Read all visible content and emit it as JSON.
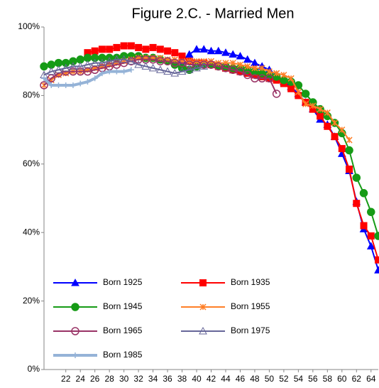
{
  "chart_data": {
    "type": "line",
    "title": "Figure 2.C. - Married Men",
    "x": [
      19,
      20,
      21,
      22,
      23,
      24,
      25,
      26,
      27,
      28,
      29,
      30,
      31,
      32,
      33,
      34,
      35,
      36,
      37,
      38,
      39,
      40,
      41,
      42,
      43,
      44,
      45,
      46,
      47,
      48,
      49,
      50,
      51,
      52,
      53,
      54,
      55,
      56,
      57,
      58,
      59,
      60,
      61,
      62,
      63,
      64,
      65
    ],
    "xlim": [
      19,
      65
    ],
    "xticks": [
      22,
      24,
      26,
      28,
      30,
      32,
      34,
      36,
      38,
      40,
      42,
      44,
      46,
      48,
      50,
      52,
      54,
      56,
      58,
      60,
      62,
      64
    ],
    "ylim": [
      0,
      100
    ],
    "yticks": [
      {
        "value": 0,
        "label": "0%"
      },
      {
        "value": 20,
        "label": "20%"
      },
      {
        "value": 40,
        "label": "40%"
      },
      {
        "value": 60,
        "label": "60%"
      },
      {
        "value": 80,
        "label": "80%"
      },
      {
        "value": 100,
        "label": "100%"
      }
    ],
    "series": [
      {
        "name": "Born 1925",
        "color": "#0000ff",
        "marker": "triangle",
        "values": [
          null,
          null,
          null,
          null,
          null,
          null,
          null,
          null,
          null,
          null,
          null,
          null,
          null,
          null,
          null,
          null,
          null,
          null,
          null,
          90,
          92,
          93.5,
          93.5,
          93,
          93,
          92.5,
          92,
          91.5,
          90.5,
          89.5,
          88.5,
          87.5,
          86,
          84,
          82.5,
          80.5,
          78,
          76,
          73,
          71.5,
          68,
          63,
          58,
          49,
          41,
          36,
          29
        ]
      },
      {
        "name": "Born 1935",
        "color": "#ff0000",
        "marker": "square",
        "values": [
          null,
          null,
          null,
          null,
          null,
          null,
          92.5,
          93,
          93.5,
          93.5,
          94,
          94.5,
          94.5,
          94,
          93.5,
          94,
          93.5,
          93,
          92.5,
          91.5,
          90,
          89.5,
          89.5,
          89,
          88.5,
          88,
          87.5,
          87,
          86.5,
          86,
          85.5,
          85,
          84.5,
          83.5,
          82,
          80,
          78,
          76,
          74,
          71,
          68,
          64.5,
          58.5,
          48.5,
          42,
          39,
          32
        ]
      },
      {
        "name": "Born 1945",
        "color": "#169b16",
        "marker": "circle",
        "values": [
          88.5,
          89,
          89.5,
          89.5,
          90,
          90.5,
          91,
          91,
          91,
          91,
          91,
          91.5,
          91.5,
          91.5,
          91,
          91,
          90.5,
          90,
          89,
          88,
          87.5,
          88.5,
          89,
          89,
          88.5,
          88.5,
          88,
          88,
          87.5,
          87,
          86.5,
          86,
          85.5,
          84.5,
          84,
          83,
          80.5,
          78,
          76,
          74,
          72,
          69,
          64,
          56,
          51.5,
          46,
          39
        ]
      },
      {
        "name": "Born 1955",
        "color": "#ff7f27",
        "marker": "asterisk",
        "values": [
          83,
          84.5,
          86,
          86.5,
          87,
          87,
          87.5,
          88,
          88.5,
          89,
          89.5,
          90,
          90.5,
          91,
          91,
          91,
          91,
          90.5,
          90.5,
          90,
          90,
          90,
          90,
          90,
          89.5,
          89.5,
          89.5,
          89,
          88.5,
          88,
          88,
          87,
          86.5,
          86,
          85,
          81,
          77.5,
          77,
          76,
          75,
          72,
          70,
          67,
          null,
          null,
          null,
          null
        ]
      },
      {
        "name": "Born 1965",
        "color": "#993366",
        "marker": "open-circle",
        "values": [
          83,
          85,
          86.5,
          87,
          87,
          87,
          87,
          87.5,
          88,
          88.5,
          89,
          89.5,
          90,
          90.5,
          90.5,
          90.5,
          90,
          90,
          89.5,
          89.5,
          89,
          89,
          89,
          89,
          88.5,
          88,
          87.5,
          87,
          86,
          85,
          85,
          85,
          80.5,
          null,
          null,
          null,
          null,
          null,
          null,
          null,
          null,
          null,
          null,
          null,
          null,
          null,
          null
        ]
      },
      {
        "name": "Born 1975",
        "color": "#666699",
        "marker": "open-triangle",
        "values": [
          86,
          87,
          87.5,
          88,
          88.5,
          88.5,
          89,
          89.5,
          89.5,
          90,
          90.5,
          90.5,
          90,
          89,
          88.5,
          88,
          87.5,
          87,
          86.5,
          87,
          87.5,
          88,
          88.5,
          null,
          null,
          null,
          null,
          null,
          null,
          null,
          null,
          null,
          null,
          null,
          null,
          null,
          null,
          null,
          null,
          null,
          null,
          null,
          null,
          null,
          null,
          null,
          null
        ]
      },
      {
        "name": "Born 1985",
        "color": "#95b3d7",
        "marker": "plus",
        "values": [
          85,
          83,
          83,
          83,
          83,
          83.5,
          84,
          85,
          86.5,
          87,
          87,
          87,
          87.5,
          null,
          null,
          null,
          null,
          null,
          null,
          null,
          null,
          null,
          null,
          null,
          null,
          null,
          null,
          null,
          null,
          null,
          null,
          null,
          null,
          null,
          null,
          null,
          null,
          null,
          null,
          null,
          null,
          null,
          null,
          null,
          null,
          null,
          null
        ]
      }
    ]
  }
}
